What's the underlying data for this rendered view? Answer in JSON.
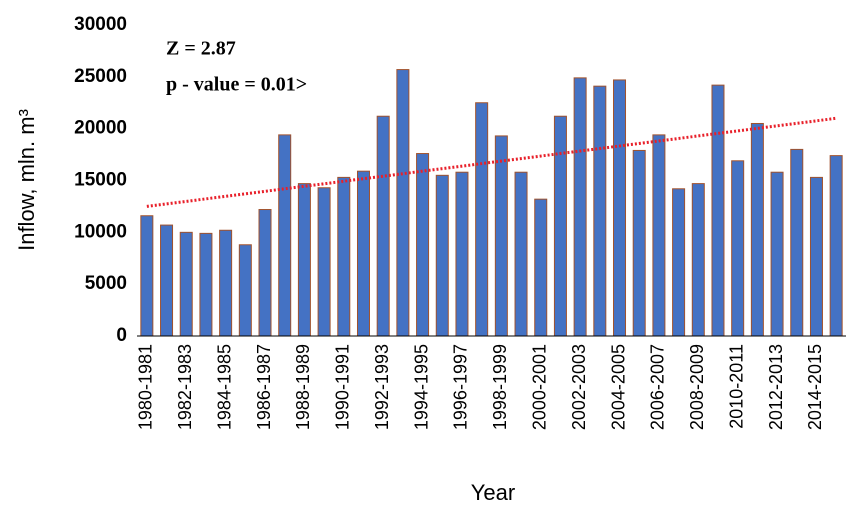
{
  "chart_data": {
    "type": "bar",
    "annotations": [
      "Z = 2.87",
      "p - value = 0.01>"
    ],
    "xlabel": "Year",
    "ylabel": "Inflow, mln. m³",
    "categories": [
      "1980-1981",
      null,
      "1982-1983",
      null,
      "1984-1985",
      null,
      "1986-1987",
      null,
      "1988-1989",
      null,
      "1990-1991",
      null,
      "1992-1993",
      null,
      "1994-1995",
      null,
      "1996-1997",
      null,
      "1998-1999",
      null,
      "2000-2001",
      null,
      "2002-2003",
      null,
      "2004-2005",
      null,
      "2006-2007",
      null,
      "2008-2009",
      null,
      "2010-2011",
      null,
      "2012-2013",
      null,
      "2014-2015",
      null
    ],
    "values": [
      11600,
      10700,
      10000,
      9900,
      10200,
      8800,
      12200,
      19400,
      14700,
      14300,
      15300,
      15900,
      21200,
      25700,
      17600,
      15500,
      15800,
      22500,
      19300,
      15800,
      13200,
      21200,
      24900,
      24100,
      24700,
      17900,
      19400,
      14200,
      14700,
      24200,
      16900,
      20500,
      15800,
      18000,
      15300,
      17400
    ],
    "color": "#4472c4",
    "edge_color": "#a0522d",
    "trendline": {
      "values": [
        12500,
        21000
      ],
      "color": "#e8202a"
    },
    "ylim": [
      0,
      30000
    ],
    "yticks": [
      0,
      5000,
      10000,
      15000,
      20000,
      25000,
      30000
    ]
  }
}
